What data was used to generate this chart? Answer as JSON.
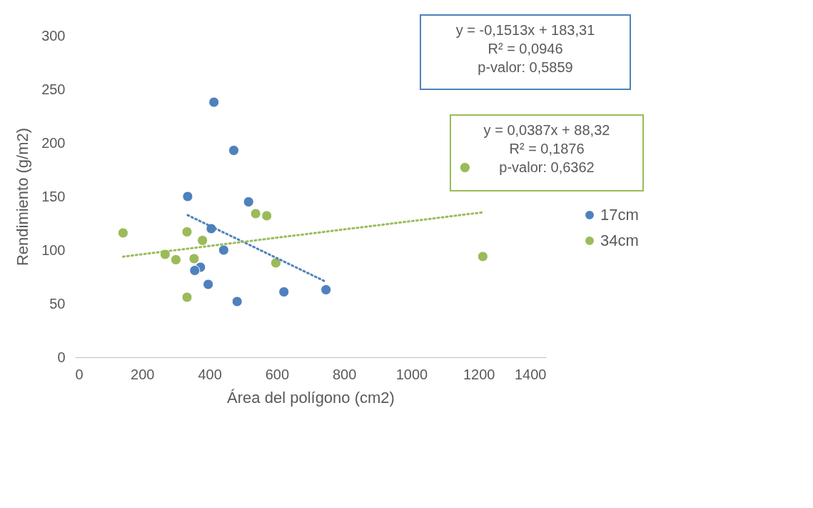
{
  "chart_data": {
    "type": "scatter",
    "xlabel": "Área del polígono (cm2)",
    "ylabel": "Rendimiento (g/m2)",
    "xlim": [
      0,
      1400
    ],
    "xticks": [
      0,
      200,
      400,
      600,
      800,
      1000,
      1200,
      1400
    ],
    "ylim": [
      0,
      300
    ],
    "yticks": [
      0,
      50,
      100,
      150,
      200,
      250,
      300
    ],
    "grid": false,
    "legend": "right",
    "marker": "circle",
    "series": [
      {
        "name": "17cm",
        "color": "#4e81bd",
        "x": [
          413,
          472,
          335,
          516,
          405,
          442,
          373,
          356,
          396,
          482,
          621,
          746
        ],
        "values": [
          238,
          193,
          150,
          145,
          120,
          100,
          84,
          81,
          68,
          52,
          61,
          63
        ]
      },
      {
        "name": "34cm",
        "color": "#9bbb59",
        "x": [
          143,
          333,
          268,
          300,
          354,
          379,
          537,
          570,
          597,
          333,
          1212,
          1159
        ],
        "values": [
          116,
          117,
          96,
          91,
          92,
          109,
          134,
          132,
          88,
          56,
          94,
          177
        ]
      },
      {
        "type": "line",
        "color": "#4e81bd",
        "line_style": "dotted",
        "marker": "none",
        "x": [
          335,
          746
        ],
        "values": [
          132.6,
          70.4
        ]
      },
      {
        "type": "line",
        "color": "#9bbb59",
        "line_style": "dotted",
        "marker": "none",
        "x": [
          143,
          1212
        ],
        "values": [
          93.9,
          135.2
        ]
      }
    ],
    "annotations": [
      "y = -0,1513x + 183,31\nR² = 0,0946\np-valor: 0,5859",
      "y = 0,0387x + 88,32\nR² = 0,1876\np-valor: 0,6362"
    ]
  }
}
